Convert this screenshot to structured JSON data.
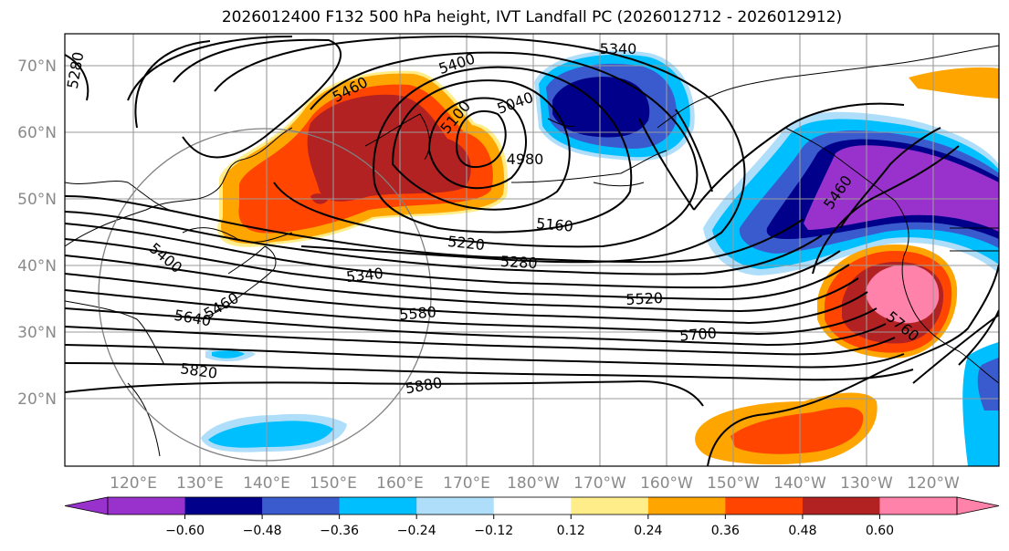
{
  "title": "2026012400 F132 500 hPa height, IVT Landfall PC (2026012712 - 2026012912)",
  "lat_labels": [
    "70°N",
    "60°N",
    "50°N",
    "40°N",
    "30°N",
    "20°N"
  ],
  "lon_labels": [
    "120°E",
    "130°E",
    "140°E",
    "150°E",
    "160°E",
    "170°E",
    "180°W",
    "170°W",
    "160°W",
    "150°W",
    "140°W",
    "130°W",
    "120°W"
  ],
  "colorbar": {
    "colors": [
      "#9932cc",
      "#00008b",
      "#3a5bcd",
      "#00bfff",
      "#afdefa",
      "#ffffff",
      "#ffed8a",
      "#ffa500",
      "#ff4500",
      "#b22222",
      "#ff82ab"
    ],
    "tick_labels": [
      "−0.60",
      "−0.48",
      "−0.36",
      "−0.24",
      "−0.12",
      "0.12",
      "0.24",
      "0.36",
      "0.48",
      "0.60"
    ]
  },
  "contour_labels": [
    "5280",
    "5340",
    "5400",
    "5460",
    "5100",
    "5040",
    "4980",
    "5160",
    "5220",
    "5280",
    "5340",
    "5400",
    "5520",
    "5580",
    "5640",
    "5700",
    "5760",
    "5820",
    "5880",
    "5460",
    "5460"
  ]
}
